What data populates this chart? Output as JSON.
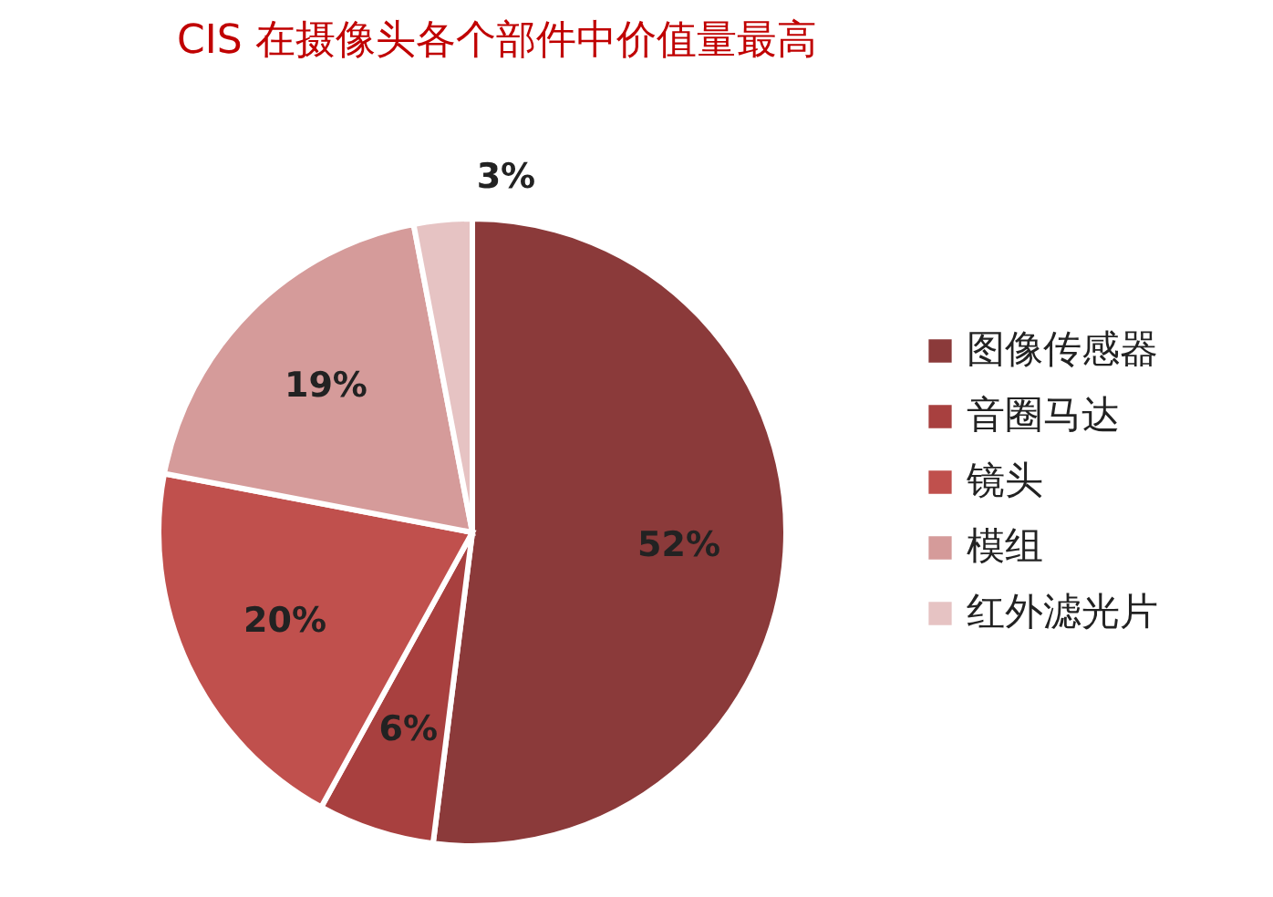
{
  "chart_data": {
    "type": "pie",
    "title": "CIS 在摄像头各个部件中价值量最高",
    "categories": [
      "图像传感器",
      "音圈马达",
      "镜头",
      "模组",
      "红外滤光片"
    ],
    "values": [
      52,
      6,
      20,
      19,
      3
    ],
    "colors": [
      "#8b3a3a",
      "#a8403f",
      "#c0504d",
      "#d59b9a",
      "#e6c3c3"
    ],
    "value_labels": [
      "52%",
      "6%",
      "20%",
      "19%",
      "3%"
    ],
    "legend": "right"
  }
}
